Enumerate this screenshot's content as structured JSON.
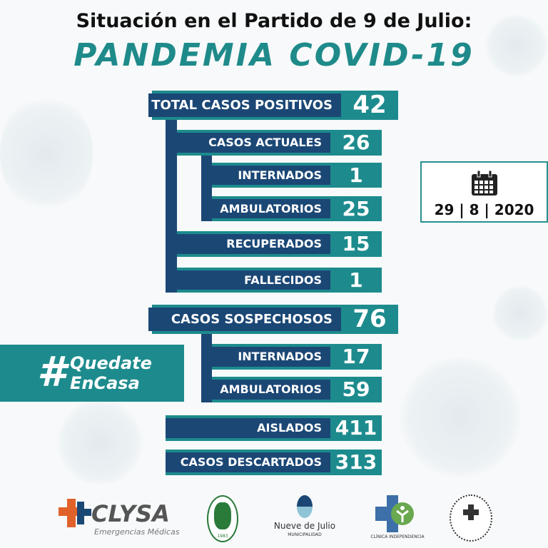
{
  "header": {
    "line1": "Situación en el Partido de 9 de Julio:",
    "line2": "PANDEMIA COVID-19"
  },
  "stats": [
    {
      "label": "TOTAL CASOS POSITIVOS",
      "value": "42"
    },
    {
      "label": "CASOS ACTUALES",
      "value": "26"
    },
    {
      "label": "INTERNADOS",
      "value": "1"
    },
    {
      "label": "AMBULATORIOS",
      "value": "25"
    },
    {
      "label": "RECUPERADOS",
      "value": "15"
    },
    {
      "label": "FALLECIDOS",
      "value": "1"
    },
    {
      "label": "CASOS SOSPECHOSOS",
      "value": "76"
    },
    {
      "label": "INTERNADOS",
      "value": "17"
    },
    {
      "label": "AMBULATORIOS",
      "value": "59"
    },
    {
      "label": "AISLADOS",
      "value": "411"
    },
    {
      "label": "CASOS DESCARTADOS",
      "value": "313"
    }
  ],
  "hashtag": {
    "symbol": "#",
    "line1": "Quedate",
    "line2": "EnCasa"
  },
  "date": {
    "icon": "calendar-icon",
    "text": "29 | 8 | 2020"
  },
  "logos": {
    "clysa": {
      "name": "CLYSA",
      "sub": "Emergencias Médicas"
    },
    "circle_seal": {
      "year": "1983"
    },
    "municipio": {
      "name": "Nueve de Julio",
      "sub": "MUNICIPALIDAD"
    },
    "clinica": {
      "name": "CLÍNICA INDEPENDENCIA"
    }
  },
  "colors": {
    "teal": "#1d8b8d",
    "navy": "#1b4775",
    "orange": "#e0622a"
  }
}
